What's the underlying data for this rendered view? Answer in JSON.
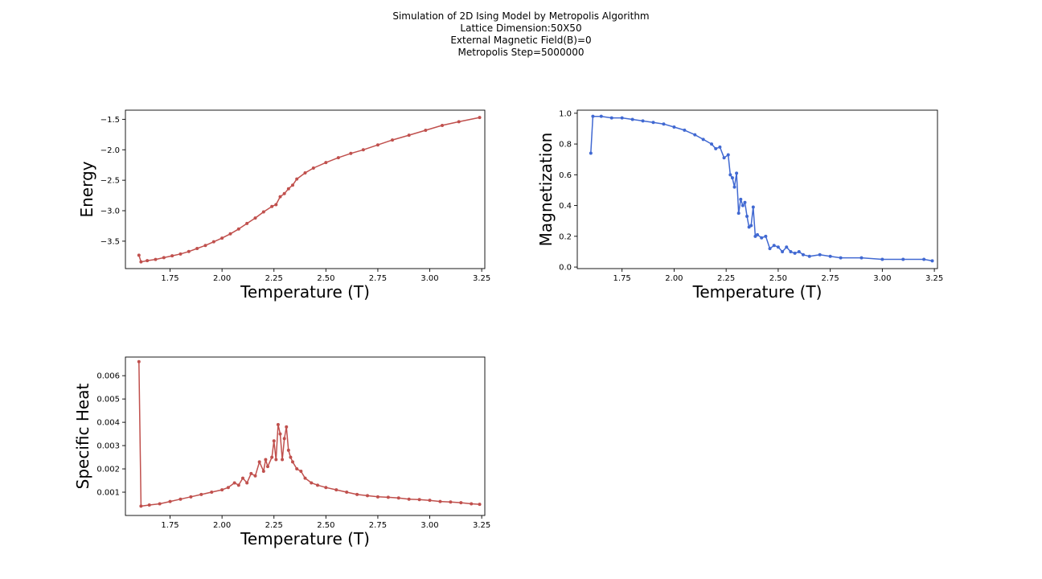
{
  "figure": {
    "title_lines": [
      "Simulation of 2D Ising Model by Metropolis Algorithm",
      "Lattice Dimension:50X50",
      "External Magnetic Field(B)=0",
      "Metropolis Step=5000000"
    ]
  },
  "chart_data": [
    {
      "type": "line",
      "name": "energy",
      "xlabel": "Temperature (T)",
      "ylabel": "Energy",
      "color": "#c0504d",
      "xlim": [
        1.535,
        3.265
      ],
      "ylim": [
        -3.95,
        -1.35
      ],
      "xticks": [
        1.75,
        2.0,
        2.25,
        2.5,
        2.75,
        3.0,
        3.25
      ],
      "xtick_labels": [
        "1.75",
        "2.00",
        "2.25",
        "2.50",
        "2.75",
        "3.00",
        "3.25"
      ],
      "yticks": [
        -3.5,
        -3.0,
        -2.5,
        -2.0,
        -1.5
      ],
      "ytick_labels": [
        "−3.5",
        "−3.0",
        "−2.5",
        "−2.0",
        "−1.5"
      ],
      "x": [
        1.6,
        1.61,
        1.64,
        1.68,
        1.72,
        1.76,
        1.8,
        1.84,
        1.88,
        1.92,
        1.96,
        2.0,
        2.04,
        2.08,
        2.12,
        2.16,
        2.2,
        2.24,
        2.26,
        2.28,
        2.3,
        2.32,
        2.34,
        2.36,
        2.4,
        2.44,
        2.5,
        2.56,
        2.62,
        2.68,
        2.75,
        2.82,
        2.9,
        2.98,
        3.06,
        3.14,
        3.24
      ],
      "y": [
        -3.73,
        -3.84,
        -3.82,
        -3.8,
        -3.77,
        -3.74,
        -3.71,
        -3.67,
        -3.62,
        -3.57,
        -3.51,
        -3.45,
        -3.38,
        -3.3,
        -3.21,
        -3.12,
        -3.02,
        -2.93,
        -2.9,
        -2.77,
        -2.72,
        -2.64,
        -2.58,
        -2.48,
        -2.38,
        -2.3,
        -2.21,
        -2.13,
        -2.06,
        -2.0,
        -1.92,
        -1.84,
        -1.76,
        -1.68,
        -1.6,
        -1.54,
        -1.47
      ]
    },
    {
      "type": "line",
      "name": "magnetization",
      "xlabel": "Temperature (T)",
      "ylabel": "Magnetization",
      "color": "#4169d2",
      "xlim": [
        1.535,
        3.265
      ],
      "ylim": [
        -0.01,
        1.02
      ],
      "xticks": [
        1.75,
        2.0,
        2.25,
        2.5,
        2.75,
        3.0,
        3.25
      ],
      "xtick_labels": [
        "1.75",
        "2.00",
        "2.25",
        "2.50",
        "2.75",
        "3.00",
        "3.25"
      ],
      "yticks": [
        0.0,
        0.2,
        0.4,
        0.6,
        0.8,
        1.0
      ],
      "ytick_labels": [
        "0.0",
        "0.2",
        "0.4",
        "0.6",
        "0.8",
        "1.0"
      ],
      "x": [
        1.6,
        1.61,
        1.65,
        1.7,
        1.75,
        1.8,
        1.85,
        1.9,
        1.95,
        2.0,
        2.05,
        2.1,
        2.14,
        2.18,
        2.2,
        2.22,
        2.24,
        2.26,
        2.27,
        2.28,
        2.29,
        2.3,
        2.31,
        2.32,
        2.33,
        2.34,
        2.35,
        2.36,
        2.37,
        2.38,
        2.39,
        2.4,
        2.42,
        2.44,
        2.46,
        2.48,
        2.5,
        2.52,
        2.54,
        2.56,
        2.58,
        2.6,
        2.62,
        2.65,
        2.7,
        2.75,
        2.8,
        2.9,
        3.0,
        3.1,
        3.2,
        3.24
      ],
      "y": [
        0.74,
        0.98,
        0.98,
        0.97,
        0.97,
        0.96,
        0.95,
        0.94,
        0.93,
        0.91,
        0.89,
        0.86,
        0.83,
        0.8,
        0.77,
        0.78,
        0.71,
        0.73,
        0.6,
        0.58,
        0.52,
        0.61,
        0.35,
        0.44,
        0.4,
        0.42,
        0.33,
        0.26,
        0.27,
        0.39,
        0.2,
        0.21,
        0.19,
        0.2,
        0.12,
        0.14,
        0.13,
        0.1,
        0.13,
        0.1,
        0.09,
        0.1,
        0.08,
        0.07,
        0.08,
        0.07,
        0.06,
        0.06,
        0.05,
        0.05,
        0.05,
        0.04
      ]
    },
    {
      "type": "line",
      "name": "specific-heat",
      "xlabel": "Temperature (T)",
      "ylabel": "Specific Heat",
      "color": "#c0504d",
      "xlim": [
        1.535,
        3.265
      ],
      "ylim": [
        0.0,
        0.0068
      ],
      "xticks": [
        1.75,
        2.0,
        2.25,
        2.5,
        2.75,
        3.0,
        3.25
      ],
      "xtick_labels": [
        "1.75",
        "2.00",
        "2.25",
        "2.50",
        "2.75",
        "3.00",
        "3.25"
      ],
      "yticks": [
        0.001,
        0.002,
        0.003,
        0.004,
        0.005,
        0.006
      ],
      "ytick_labels": [
        "0.001",
        "0.002",
        "0.003",
        "0.004",
        "0.005",
        "0.006"
      ],
      "x": [
        1.6,
        1.61,
        1.65,
        1.7,
        1.75,
        1.8,
        1.85,
        1.9,
        1.95,
        2.0,
        2.03,
        2.06,
        2.08,
        2.1,
        2.12,
        2.14,
        2.16,
        2.18,
        2.2,
        2.21,
        2.22,
        2.24,
        2.25,
        2.26,
        2.27,
        2.28,
        2.29,
        2.3,
        2.31,
        2.32,
        2.33,
        2.34,
        2.36,
        2.38,
        2.4,
        2.43,
        2.46,
        2.5,
        2.55,
        2.6,
        2.65,
        2.7,
        2.75,
        2.8,
        2.85,
        2.9,
        2.95,
        3.0,
        3.05,
        3.1,
        3.15,
        3.2,
        3.24
      ],
      "y": [
        0.0066,
        0.0004,
        0.00045,
        0.0005,
        0.0006,
        0.0007,
        0.0008,
        0.0009,
        0.001,
        0.0011,
        0.0012,
        0.0014,
        0.0013,
        0.0016,
        0.0014,
        0.0018,
        0.0017,
        0.0023,
        0.0019,
        0.0024,
        0.0021,
        0.0025,
        0.0032,
        0.0024,
        0.0039,
        0.0035,
        0.0024,
        0.0033,
        0.0038,
        0.0028,
        0.0025,
        0.0023,
        0.002,
        0.0019,
        0.0016,
        0.0014,
        0.0013,
        0.0012,
        0.0011,
        0.001,
        0.0009,
        0.00085,
        0.0008,
        0.00078,
        0.00075,
        0.0007,
        0.00068,
        0.00065,
        0.0006,
        0.00058,
        0.00055,
        0.0005,
        0.00048
      ]
    }
  ]
}
